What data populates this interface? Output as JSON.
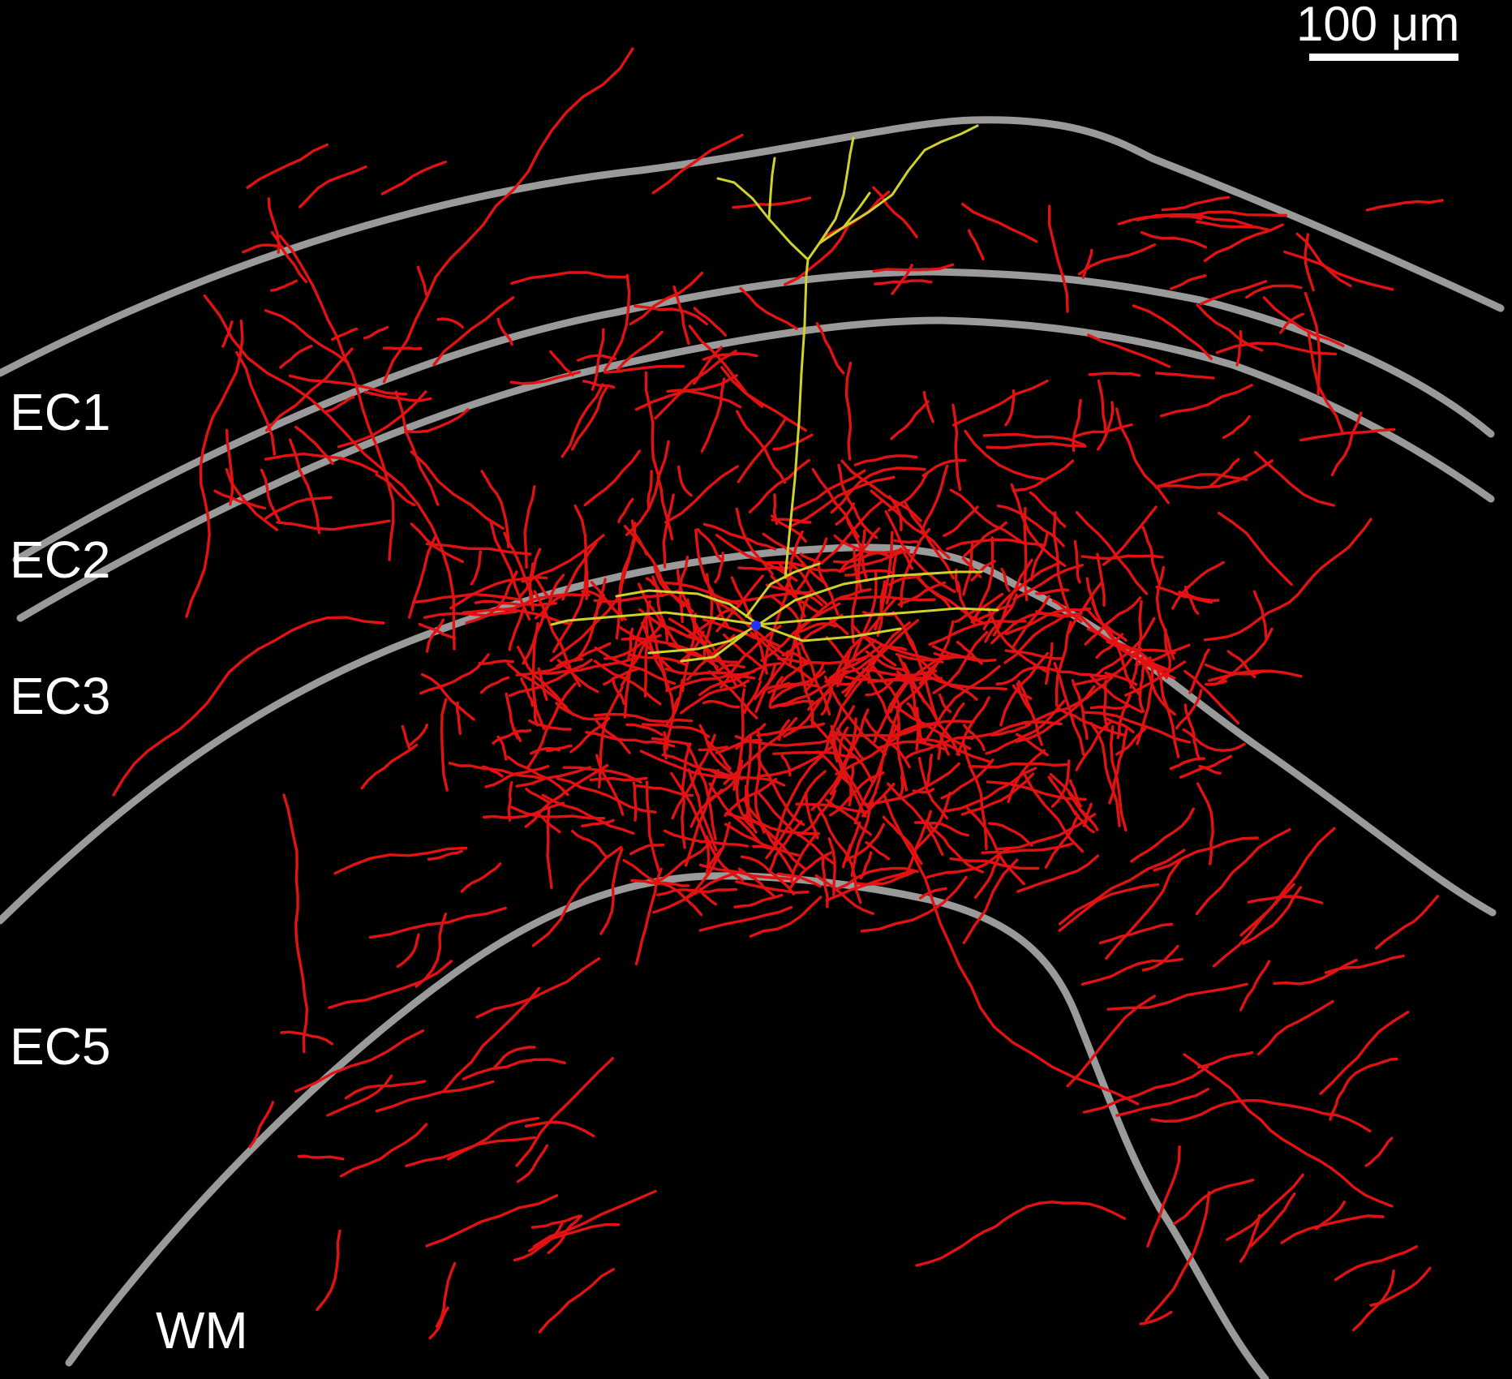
{
  "figure": {
    "background_color": "#000000",
    "scale_bar": {
      "label": "100 μm",
      "color": "#ffffff"
    },
    "layer_labels": [
      {
        "id": "ec1",
        "text": "EC1"
      },
      {
        "id": "ec2",
        "text": "EC2"
      },
      {
        "id": "ec3",
        "text": "EC3"
      },
      {
        "id": "ec5",
        "text": "EC5"
      },
      {
        "id": "wm",
        "text": "WM"
      }
    ],
    "colors": {
      "boundary": "#9a9a9a",
      "axon": "#e21212",
      "dendrite": "#cfd22a",
      "soma": "#2233ff"
    }
  }
}
